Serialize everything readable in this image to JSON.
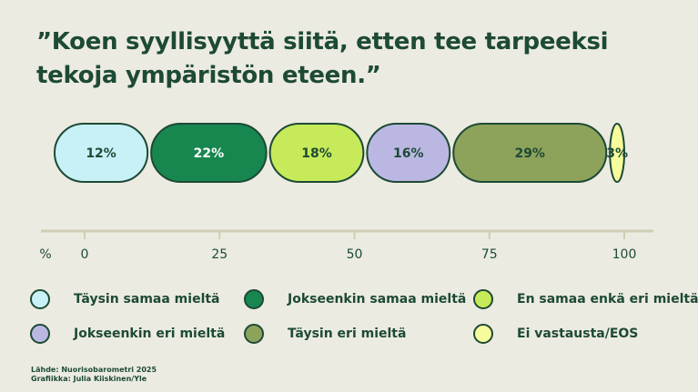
{
  "title_lines": [
    "”Koen syyllisyyttä siitä, etten tee tarpeeksi",
    "tekoja ympäristön eteen.”"
  ],
  "chart_data": {
    "type": "bar",
    "orientation": "horizontal-stacked",
    "segments": [
      {
        "name": "Täysin samaa mieltä",
        "value": 12,
        "label": "12%",
        "color": "#c8f1f7",
        "text_color": "#1d4a35"
      },
      {
        "name": "Jokseenkin samaa mieltä",
        "value": 22,
        "label": "22%",
        "color": "#17874f",
        "text_color": "#ffffff"
      },
      {
        "name": "En samaa enkä eri mieltä",
        "value": 18,
        "label": "18%",
        "color": "#c6ea5a",
        "text_color": "#1d4a35"
      },
      {
        "name": "Jokseenkin eri mieltä",
        "value": 16,
        "label": "16%",
        "color": "#bbb7e3",
        "text_color": "#1d4a35"
      },
      {
        "name": "Täysin eri mieltä",
        "value": 29,
        "label": "29%",
        "color": "#8da35b",
        "text_color": "#1d4a35"
      },
      {
        "name": "Ei vastausta/EOS",
        "value": 3,
        "label": "3%",
        "color": "#f6fb9c",
        "text_color": "#1d4a35"
      }
    ],
    "axis": {
      "unit_label": "%",
      "ticks": [
        0,
        25,
        50,
        75,
        100
      ],
      "range": [
        0,
        100
      ]
    }
  },
  "footer": {
    "source": "Lähde: Nuorisobarometri 2025",
    "graphics": "Grafiikka: Julia Kiiskinen/Yle"
  },
  "colors": {
    "background": "#ecebe1",
    "text": "#1d4a35",
    "axis": "#cfcdb3"
  }
}
